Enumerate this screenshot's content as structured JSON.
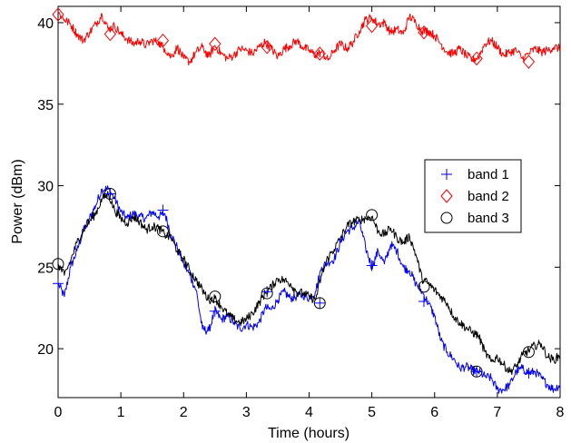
{
  "chart_data": {
    "type": "line",
    "title": "",
    "xlabel": "Time (hours)",
    "ylabel": "Power (dBm)",
    "xlim": [
      0,
      8
    ],
    "ylim": [
      17,
      41
    ],
    "xticks": [
      "0",
      "1",
      "2",
      "3",
      "4",
      "5",
      "6",
      "7",
      "8"
    ],
    "yticks": [
      "20",
      "25",
      "30",
      "35",
      "40"
    ],
    "grid": false,
    "legend_position": "center-right",
    "series": [
      {
        "name": "band 1",
        "color": "#0000ff",
        "marker": "plus",
        "x": [
          0,
          0.1,
          0.2,
          0.3,
          0.4,
          0.5,
          0.6,
          0.7,
          0.8,
          0.9,
          1.0,
          1.1,
          1.2,
          1.3,
          1.4,
          1.5,
          1.6,
          1.7,
          1.8,
          1.9,
          2.0,
          2.1,
          2.2,
          2.3,
          2.4,
          2.5,
          2.6,
          2.7,
          2.8,
          2.9,
          3.0,
          3.1,
          3.2,
          3.3,
          3.4,
          3.5,
          3.6,
          3.7,
          3.8,
          3.9,
          4.0,
          4.1,
          4.2,
          4.3,
          4.4,
          4.5,
          4.6,
          4.7,
          4.8,
          4.9,
          5.0,
          5.1,
          5.2,
          5.3,
          5.4,
          5.5,
          5.6,
          5.7,
          5.8,
          5.9,
          6.0,
          6.1,
          6.2,
          6.3,
          6.4,
          6.5,
          6.6,
          6.7,
          6.8,
          6.9,
          7.0,
          7.1,
          7.2,
          7.3,
          7.4,
          7.5,
          7.6,
          7.7,
          7.8,
          7.9,
          8.0
        ],
        "y": [
          24.0,
          23.2,
          25.0,
          26.0,
          27.2,
          28.0,
          28.8,
          29.8,
          29.8,
          29.2,
          28.4,
          28.0,
          28.3,
          28.1,
          28.0,
          28.4,
          28.1,
          28.3,
          27.0,
          26.2,
          25.2,
          24.5,
          23.6,
          21.2,
          21.1,
          22.3,
          21.8,
          22.0,
          21.6,
          21.2,
          21.5,
          21.3,
          21.6,
          22.5,
          22.4,
          23.0,
          23.5,
          23.1,
          23.2,
          23.3,
          23.1,
          23.5,
          25.0,
          25.3,
          25.5,
          26.5,
          27.2,
          27.4,
          27.8,
          26.2,
          25.0,
          26.0,
          25.2,
          26.4,
          26.0,
          25.0,
          24.8,
          24.0,
          23.5,
          22.8,
          22.0,
          20.5,
          19.8,
          19.4,
          18.8,
          18.9,
          18.7,
          18.6,
          18.3,
          18.2,
          17.5,
          17.5,
          17.8,
          18.6,
          18.8,
          18.5,
          18.6,
          18.2,
          17.8,
          17.5,
          17.8
        ],
        "markers_x": [
          0,
          0.83,
          1.67,
          2.5,
          3.33,
          4.17,
          5.0,
          5.83,
          6.67,
          7.5
        ],
        "markers_y": [
          24.0,
          29.5,
          28.5,
          22.3,
          23.5,
          22.8,
          25.1,
          22.9,
          18.6,
          18.5
        ]
      },
      {
        "name": "band 2",
        "color": "#ff0000",
        "marker": "diamond",
        "x": [
          0,
          0.1,
          0.2,
          0.3,
          0.4,
          0.5,
          0.6,
          0.7,
          0.8,
          0.9,
          1.0,
          1.1,
          1.2,
          1.3,
          1.4,
          1.5,
          1.6,
          1.7,
          1.8,
          1.9,
          2.0,
          2.1,
          2.2,
          2.3,
          2.4,
          2.5,
          2.6,
          2.7,
          2.8,
          2.9,
          3.0,
          3.1,
          3.2,
          3.3,
          3.4,
          3.5,
          3.6,
          3.7,
          3.8,
          3.9,
          4.0,
          4.1,
          4.2,
          4.3,
          4.4,
          4.5,
          4.6,
          4.7,
          4.8,
          4.9,
          5.0,
          5.1,
          5.2,
          5.3,
          5.4,
          5.5,
          5.6,
          5.7,
          5.8,
          5.9,
          6.0,
          6.1,
          6.2,
          6.3,
          6.4,
          6.5,
          6.6,
          6.7,
          6.8,
          6.9,
          7.0,
          7.1,
          7.2,
          7.3,
          7.4,
          7.5,
          7.6,
          7.7,
          7.8,
          7.9,
          8.0
        ],
        "y": [
          40.6,
          40.2,
          39.9,
          39.3,
          38.9,
          39.4,
          39.9,
          40.5,
          39.6,
          39.8,
          39.3,
          39.0,
          38.7,
          38.9,
          38.6,
          38.9,
          38.8,
          38.4,
          37.9,
          38.5,
          37.8,
          37.6,
          38.2,
          38.5,
          37.9,
          38.6,
          38.1,
          37.8,
          38.0,
          38.4,
          38.3,
          38.1,
          38.5,
          38.8,
          38.4,
          37.9,
          38.4,
          38.6,
          38.9,
          38.5,
          38.3,
          38.0,
          38.2,
          37.7,
          38.3,
          38.7,
          38.4,
          38.8,
          39.5,
          40.2,
          40.3,
          39.9,
          40.0,
          39.4,
          39.6,
          39.3,
          40.4,
          40.0,
          39.5,
          39.5,
          39.2,
          38.7,
          38.2,
          38.1,
          38.4,
          38.0,
          37.7,
          37.9,
          38.7,
          38.9,
          38.5,
          38.0,
          38.2,
          38.3,
          37.8,
          38.1,
          38.4,
          38.2,
          38.3,
          38.5,
          38.4
        ],
        "markers_x": [
          0,
          0.83,
          1.67,
          2.5,
          3.33,
          4.17,
          5.0,
          5.83,
          6.67,
          7.5
        ],
        "markers_y": [
          40.5,
          39.3,
          38.9,
          38.7,
          38.5,
          38.1,
          39.8,
          39.4,
          37.8,
          37.6
        ]
      },
      {
        "name": "band 3",
        "color": "#000000",
        "marker": "circle",
        "x": [
          0,
          0.1,
          0.2,
          0.3,
          0.4,
          0.5,
          0.6,
          0.7,
          0.8,
          0.9,
          1.0,
          1.1,
          1.2,
          1.3,
          1.4,
          1.5,
          1.6,
          1.7,
          1.8,
          1.9,
          2.0,
          2.1,
          2.2,
          2.3,
          2.4,
          2.5,
          2.6,
          2.7,
          2.8,
          2.9,
          3.0,
          3.1,
          3.2,
          3.3,
          3.4,
          3.5,
          3.6,
          3.7,
          3.8,
          3.9,
          4.0,
          4.1,
          4.2,
          4.3,
          4.4,
          4.5,
          4.6,
          4.7,
          4.8,
          4.9,
          5.0,
          5.1,
          5.2,
          5.3,
          5.4,
          5.5,
          5.6,
          5.7,
          5.8,
          5.9,
          6.0,
          6.1,
          6.2,
          6.3,
          6.4,
          6.5,
          6.6,
          6.7,
          6.8,
          6.9,
          7.0,
          7.1,
          7.2,
          7.3,
          7.4,
          7.5,
          7.6,
          7.7,
          7.8,
          7.9,
          8.0
        ],
        "y": [
          25.2,
          24.5,
          25.4,
          26.5,
          27.3,
          27.8,
          28.3,
          29.2,
          29.5,
          28.5,
          28.0,
          27.7,
          28.1,
          27.8,
          27.3,
          27.5,
          27.4,
          27.0,
          26.8,
          26.0,
          25.5,
          24.8,
          24.2,
          23.6,
          23.0,
          23.1,
          22.6,
          22.1,
          21.8,
          21.6,
          21.8,
          22.2,
          22.8,
          23.4,
          23.8,
          24.3,
          24.2,
          24.0,
          23.5,
          23.4,
          23.2,
          23.0,
          24.5,
          25.6,
          26.1,
          26.8,
          27.5,
          27.8,
          27.9,
          28.0,
          28.1,
          27.2,
          27.0,
          27.4,
          26.8,
          26.5,
          26.9,
          25.8,
          24.3,
          24.0,
          23.6,
          23.2,
          22.8,
          22.0,
          21.6,
          21.3,
          21.0,
          20.8,
          19.8,
          19.2,
          19.5,
          19.0,
          18.6,
          18.9,
          19.6,
          19.9,
          20.2,
          20.3,
          19.5,
          19.3,
          19.6
        ],
        "markers_x": [
          0,
          0.83,
          1.67,
          2.5,
          3.33,
          4.17,
          5.0,
          5.83,
          6.67,
          7.5
        ],
        "markers_y": [
          25.2,
          29.5,
          27.2,
          23.2,
          23.4,
          22.8,
          28.2,
          23.8,
          18.6,
          19.8
        ]
      }
    ]
  }
}
